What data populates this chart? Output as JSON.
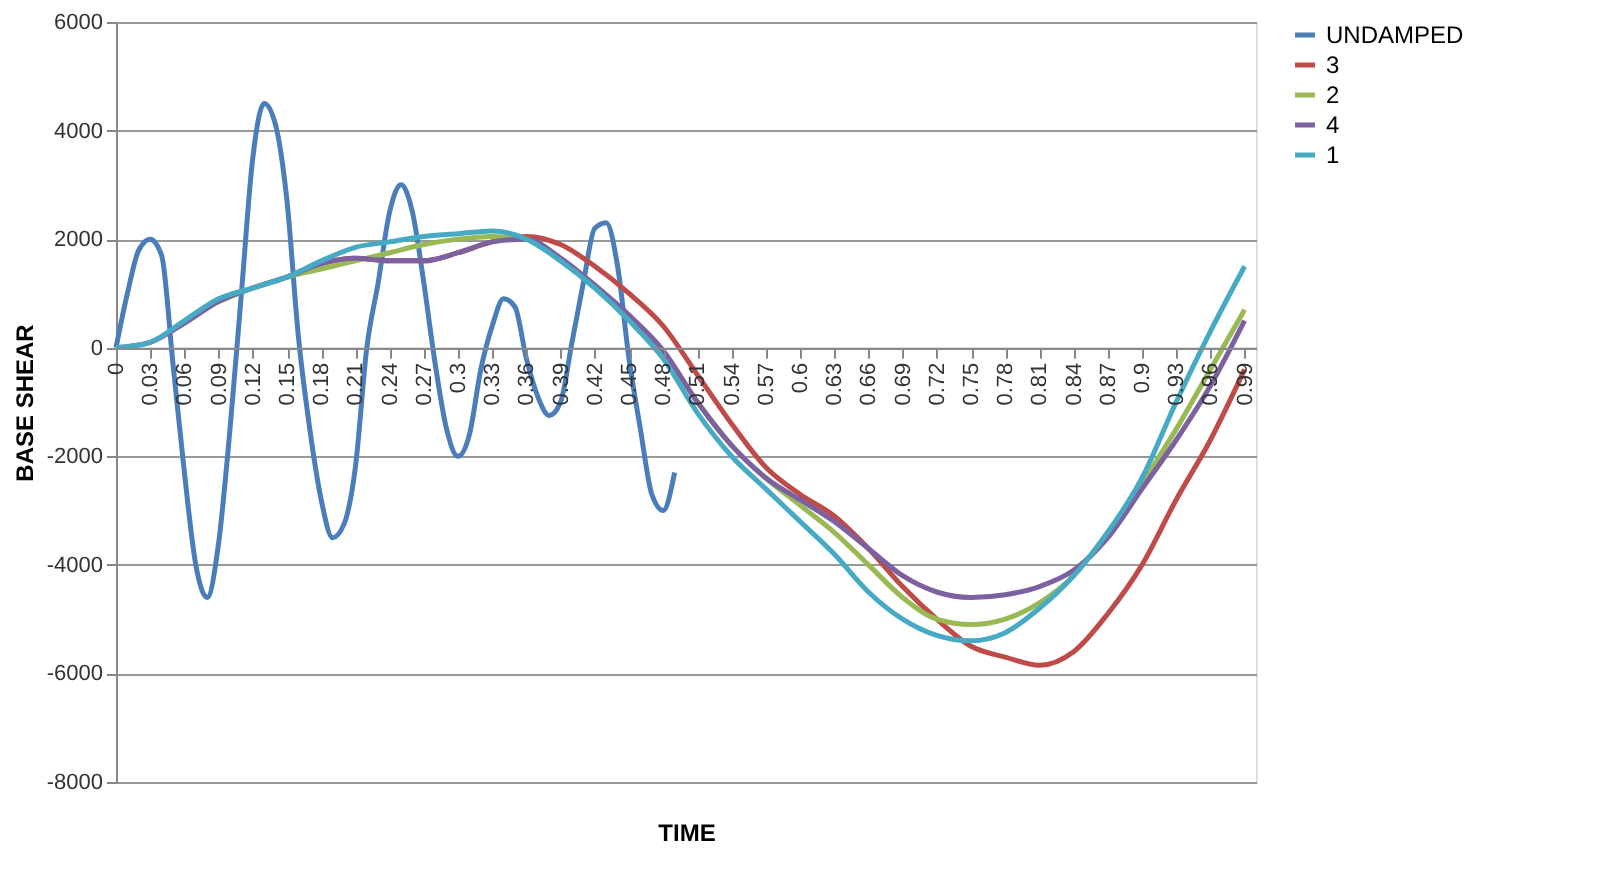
{
  "chart_data": {
    "type": "line",
    "xlabel": "TIME",
    "ylabel": "BASE SHEAR",
    "xlim": [
      0,
      1
    ],
    "xticks": [
      0,
      0.03,
      0.06,
      0.09,
      0.12,
      0.15,
      0.18,
      0.21,
      0.24,
      0.27,
      0.3,
      0.33,
      0.36,
      0.39,
      0.42,
      0.45,
      0.48,
      0.51,
      0.54,
      0.57,
      0.6,
      0.63,
      0.66,
      0.69,
      0.72,
      0.75,
      0.78,
      0.81,
      0.84,
      0.87,
      0.9,
      0.93,
      0.96,
      0.99
    ],
    "ylim": [
      -8000,
      6000
    ],
    "yticks": [
      -8000,
      -6000,
      -4000,
      -2000,
      0,
      2000,
      4000,
      6000
    ],
    "grid": "y",
    "legend": "right",
    "marker": "none",
    "line_style": "solid",
    "series": [
      {
        "name": "UNDAMPED",
        "color": "#4a7ebb",
        "x": [
          0,
          0.01,
          0.02,
          0.03,
          0.04,
          0.05,
          0.06,
          0.07,
          0.08,
          0.09,
          0.1,
          0.11,
          0.12,
          0.13,
          0.14,
          0.15,
          0.16,
          0.17,
          0.18,
          0.19,
          0.2,
          0.21,
          0.22,
          0.23,
          0.24,
          0.25,
          0.26,
          0.27,
          0.28,
          0.29,
          0.3,
          0.31,
          0.32,
          0.33,
          0.34,
          0.35,
          0.36,
          0.37,
          0.38,
          0.39,
          0.4,
          0.41,
          0.42,
          0.43,
          0.44,
          0.45,
          0.46,
          0.47,
          0.48,
          0.49
        ],
        "values": [
          0,
          1000,
          1800,
          2000,
          1700,
          -300,
          -2300,
          -4000,
          -4600,
          -3600,
          -1500,
          1000,
          3500,
          4500,
          4100,
          2700,
          200,
          -1500,
          -2800,
          -3500,
          -3250,
          -2200,
          0,
          1200,
          2500,
          3000,
          2500,
          1200,
          -300,
          -1500,
          -2000,
          -1600,
          -400,
          400,
          900,
          750,
          -200,
          -900,
          -1250,
          -1000,
          100,
          1200,
          2200,
          2300,
          1500,
          -200,
          -1500,
          -2700,
          -3000,
          -2300
        ]
      },
      {
        "name": "3",
        "color": "#be4b48",
        "x": [
          0.15,
          0.18,
          0.21,
          0.24,
          0.27,
          0.3,
          0.33,
          0.36,
          0.39,
          0.42,
          0.45,
          0.48,
          0.51,
          0.54,
          0.57,
          0.6,
          0.63,
          0.66,
          0.69,
          0.72,
          0.75,
          0.78,
          0.81,
          0.84,
          0.87,
          0.9,
          0.93,
          0.96,
          0.99
        ],
        "values": [
          1300,
          1550,
          1650,
          1600,
          1600,
          1750,
          1950,
          2050,
          1900,
          1500,
          1000,
          400,
          -500,
          -1400,
          -2200,
          -2700,
          -3100,
          -3700,
          -4400,
          -5000,
          -5500,
          -5700,
          -5850,
          -5600,
          -4900,
          -4000,
          -2800,
          -1700,
          -400
        ]
      },
      {
        "name": "2",
        "color": "#98b954",
        "x": [
          0.09,
          0.12,
          0.15,
          0.18,
          0.21,
          0.24,
          0.27,
          0.3,
          0.33,
          0.36,
          0.39,
          0.42,
          0.45,
          0.48,
          0.51,
          0.54,
          0.57,
          0.6,
          0.63,
          0.66,
          0.69,
          0.72,
          0.75,
          0.78,
          0.81,
          0.84,
          0.87,
          0.9,
          0.93,
          0.96,
          0.99
        ],
        "values": [
          850,
          1100,
          1300,
          1450,
          1600,
          1750,
          1900,
          2000,
          2050,
          2000,
          1600,
          1150,
          550,
          -100,
          -1000,
          -1800,
          -2400,
          -2900,
          -3400,
          -4000,
          -4600,
          -5000,
          -5100,
          -5000,
          -4700,
          -4200,
          -3400,
          -2500,
          -1500,
          -400,
          700
        ]
      },
      {
        "name": "4",
        "color": "#7d60a0",
        "x": [
          0,
          0.03,
          0.06,
          0.09,
          0.12,
          0.15,
          0.18,
          0.21,
          0.24,
          0.27,
          0.3,
          0.33,
          0.36,
          0.39,
          0.42,
          0.45,
          0.48,
          0.51,
          0.54,
          0.57,
          0.6,
          0.63,
          0.66,
          0.69,
          0.72,
          0.75,
          0.78,
          0.81,
          0.84,
          0.87,
          0.9,
          0.93,
          0.96,
          0.99
        ],
        "values": [
          0,
          100,
          450,
          850,
          1100,
          1300,
          1550,
          1650,
          1600,
          1600,
          1750,
          1950,
          2000,
          1650,
          1150,
          600,
          -50,
          -1000,
          -1800,
          -2400,
          -2800,
          -3200,
          -3700,
          -4200,
          -4500,
          -4600,
          -4550,
          -4400,
          -4100,
          -3500,
          -2600,
          -1700,
          -700,
          500
        ]
      },
      {
        "name": "1",
        "color": "#46aac5",
        "x": [
          0,
          0.03,
          0.06,
          0.09,
          0.12,
          0.15,
          0.18,
          0.21,
          0.24,
          0.27,
          0.3,
          0.33,
          0.36,
          0.39,
          0.42,
          0.45,
          0.48,
          0.51,
          0.54,
          0.57,
          0.6,
          0.63,
          0.66,
          0.69,
          0.72,
          0.75,
          0.78,
          0.81,
          0.84,
          0.87,
          0.9,
          0.93,
          0.96,
          0.99
        ],
        "values": [
          0,
          100,
          500,
          900,
          1100,
          1300,
          1600,
          1850,
          1950,
          2050,
          2100,
          2150,
          2000,
          1600,
          1100,
          500,
          -200,
          -1200,
          -2000,
          -2600,
          -3200,
          -3800,
          -4500,
          -5000,
          -5300,
          -5400,
          -5250,
          -4800,
          -4200,
          -3400,
          -2400,
          -1000,
          300,
          1500
        ]
      }
    ]
  }
}
